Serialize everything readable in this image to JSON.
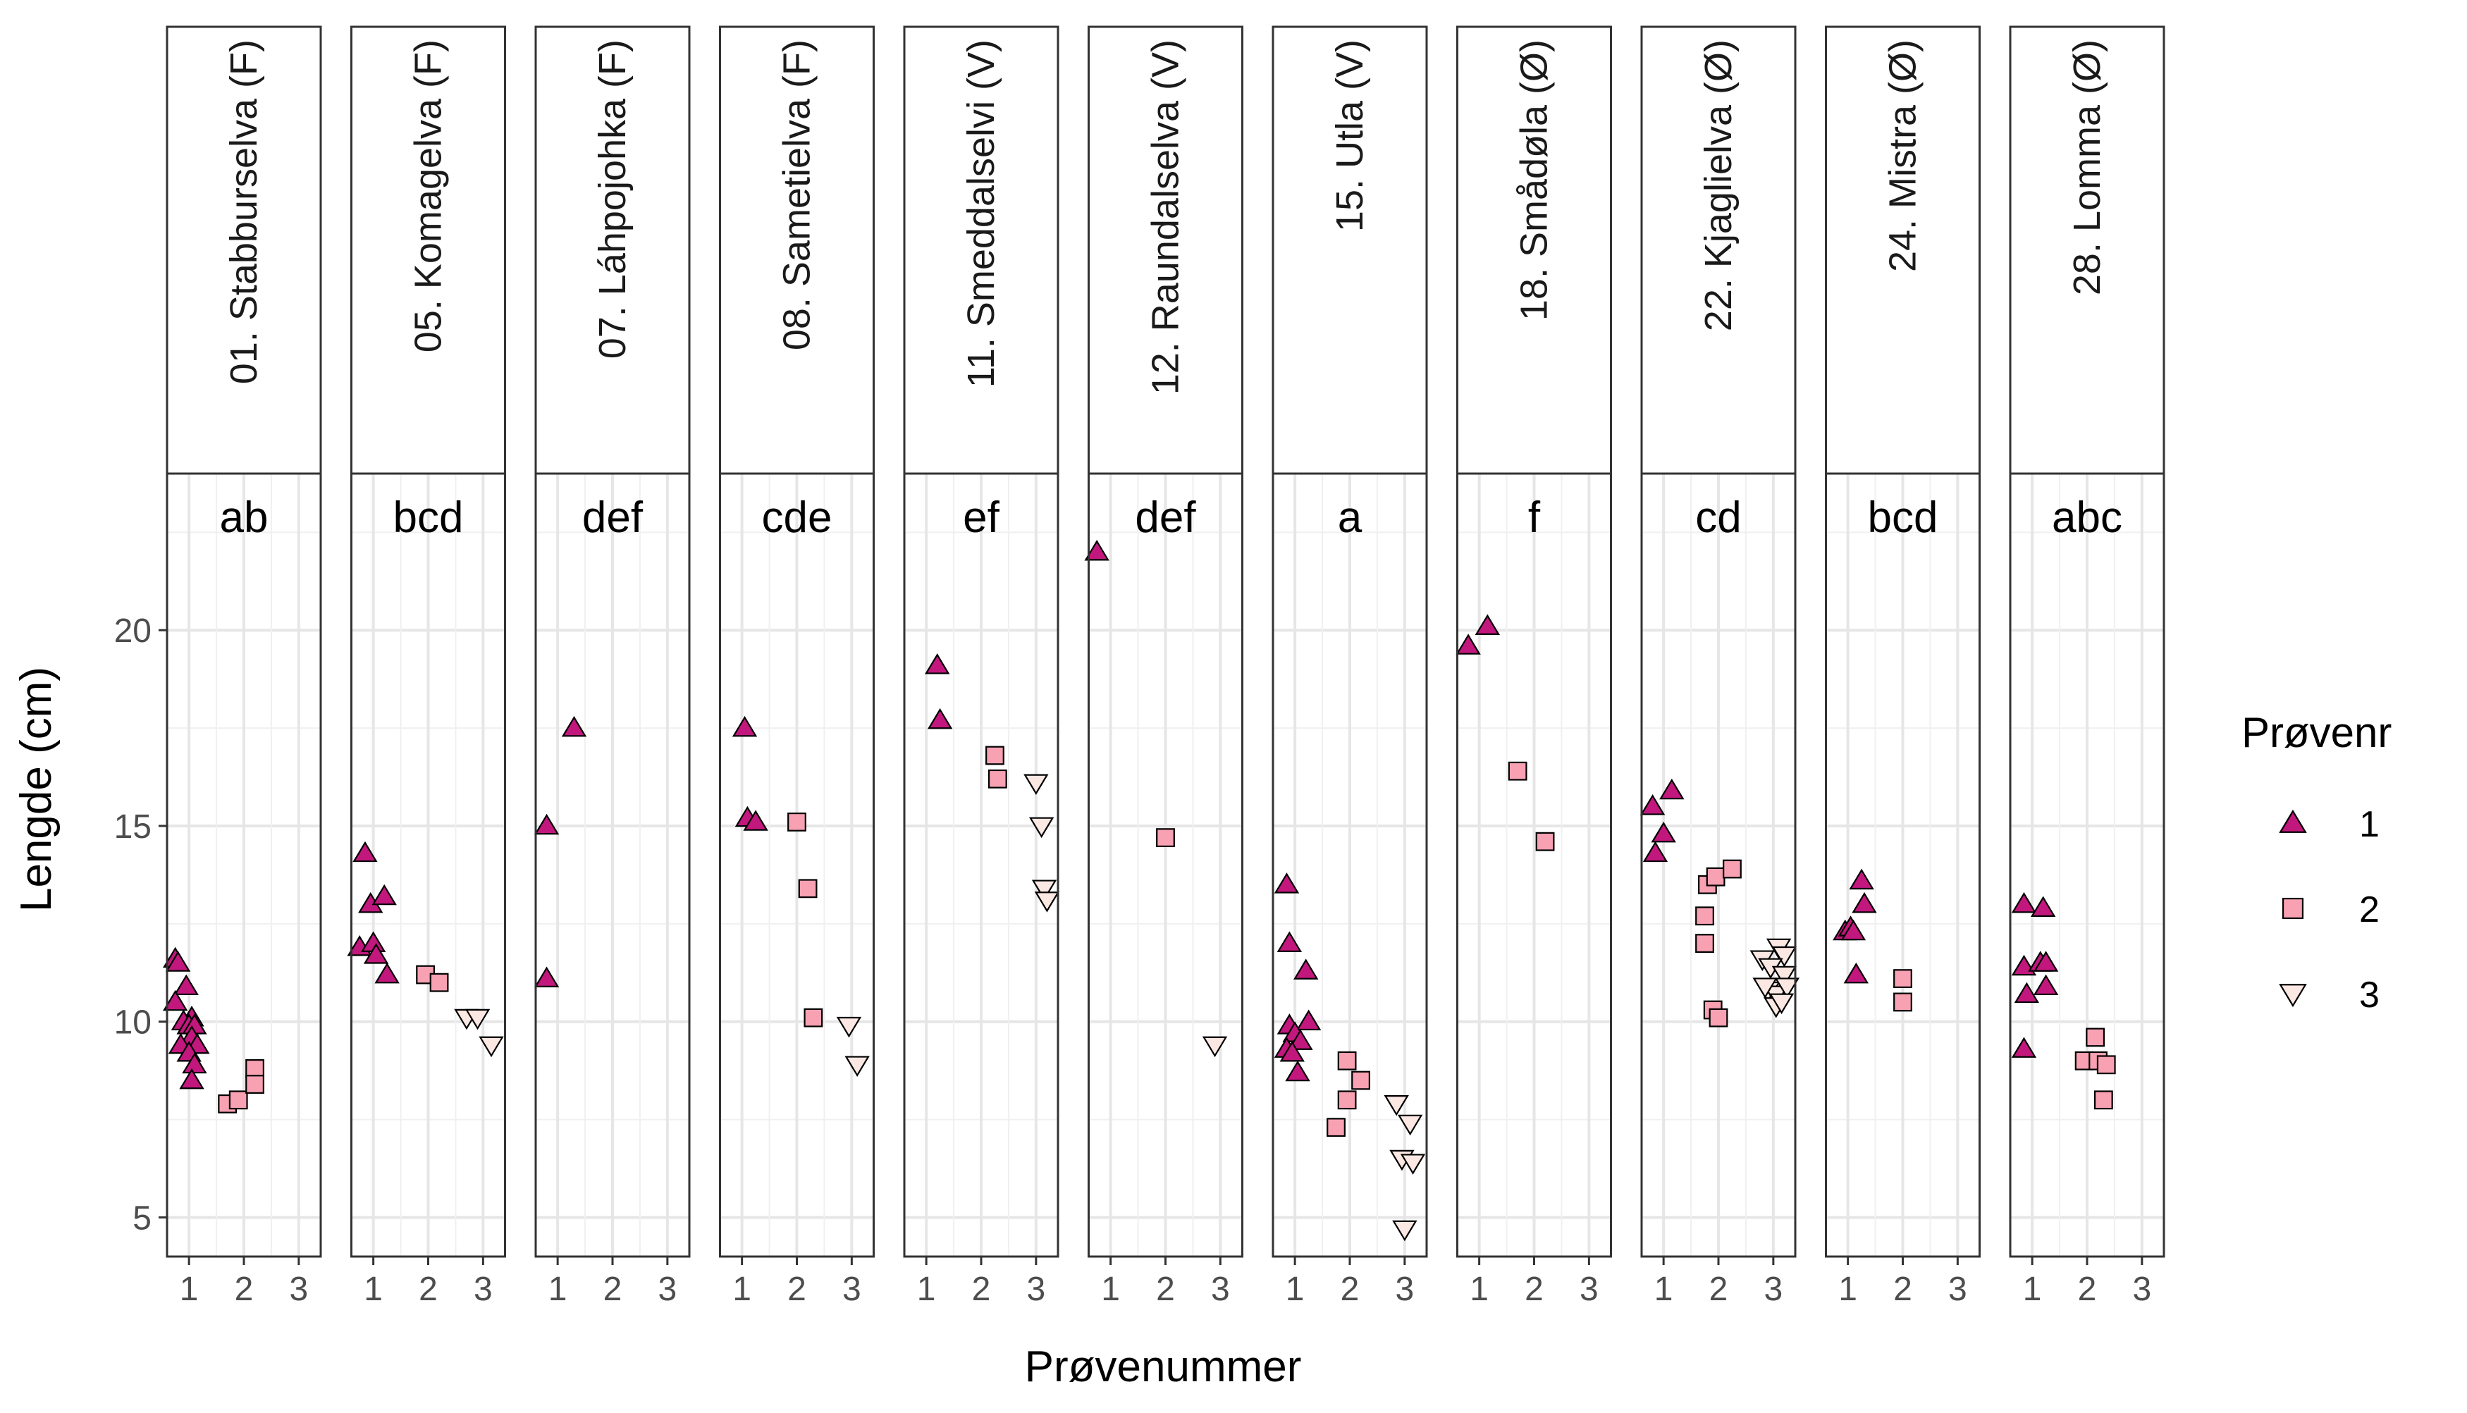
{
  "chart_data": {
    "type": "scatter",
    "title": "",
    "xlabel": "Prøvenummer",
    "ylabel": "Lengde (cm)",
    "xticks": [
      1,
      2,
      3
    ],
    "xlim": [
      0.6,
      3.4
    ],
    "yticks": [
      5,
      10,
      15,
      20
    ],
    "ylim": [
      4,
      24
    ],
    "grid": true,
    "legend": {
      "title": "Prøvenr",
      "position": "right",
      "entries": [
        {
          "label": "1",
          "shape": "triangle-up",
          "color": "#C2187E"
        },
        {
          "label": "2",
          "shape": "square",
          "color": "#F7A1B2"
        },
        {
          "label": "3",
          "shape": "triangle-down",
          "color": "#FCE8E3"
        }
      ]
    },
    "facets": [
      {
        "name": "01. Stabburselva (F)",
        "group": "ab",
        "series": [
          {
            "name": "1",
            "x": [
              0.75,
              0.8,
              0.95,
              1.05,
              0.75,
              0.9,
              1.0,
              1.1,
              1.05,
              1.15,
              0.85,
              1.0,
              1.1,
              1.05
            ],
            "y": [
              11.6,
              11.5,
              10.9,
              10.1,
              10.5,
              10.0,
              9.9,
              9.9,
              9.6,
              9.4,
              9.4,
              9.2,
              8.9,
              8.5
            ]
          },
          {
            "name": "2",
            "x": [
              1.7,
              1.9,
              2.2,
              2.2
            ],
            "y": [
              7.9,
              8.0,
              8.8,
              8.4
            ]
          },
          {
            "name": "3",
            "x": [],
            "y": []
          }
        ]
      },
      {
        "name": "05. Komagelva (F)",
        "group": "bcd",
        "series": [
          {
            "name": "1",
            "x": [
              0.85,
              0.95,
              1.2,
              0.75,
              1.0,
              1.05,
              1.25
            ],
            "y": [
              14.3,
              13.0,
              13.2,
              11.9,
              12.0,
              11.7,
              11.2
            ]
          },
          {
            "name": "2",
            "x": [
              1.95,
              2.2
            ],
            "y": [
              11.2,
              11.0
            ]
          },
          {
            "name": "3",
            "x": [
              2.7,
              2.9,
              3.15
            ],
            "y": [
              10.1,
              10.1,
              9.4
            ]
          }
        ]
      },
      {
        "name": "07. Láhpojohka (F)",
        "group": "def",
        "series": [
          {
            "name": "1",
            "x": [
              0.8,
              0.8,
              1.3
            ],
            "y": [
              15.0,
              11.1,
              17.5
            ]
          },
          {
            "name": "2",
            "x": [],
            "y": []
          },
          {
            "name": "3",
            "x": [],
            "y": []
          }
        ]
      },
      {
        "name": "08. Sametielva (F)",
        "group": "cde",
        "series": [
          {
            "name": "1",
            "x": [
              1.05,
              1.1,
              1.25
            ],
            "y": [
              17.5,
              15.2,
              15.1
            ]
          },
          {
            "name": "2",
            "x": [
              2.0,
              2.2,
              2.3
            ],
            "y": [
              15.1,
              13.4,
              10.1
            ]
          },
          {
            "name": "3",
            "x": [
              2.95,
              3.1
            ],
            "y": [
              9.9,
              8.9
            ]
          }
        ]
      },
      {
        "name": "11. Smeddalselvi (V)",
        "group": "ef",
        "series": [
          {
            "name": "1",
            "x": [
              1.2,
              1.25
            ],
            "y": [
              19.1,
              17.7
            ]
          },
          {
            "name": "2",
            "x": [
              2.25,
              2.3
            ],
            "y": [
              16.8,
              16.2
            ]
          },
          {
            "name": "3",
            "x": [
              3.0,
              3.1,
              3.15,
              3.2
            ],
            "y": [
              16.1,
              15.0,
              13.4,
              13.1
            ]
          }
        ]
      },
      {
        "name": "12. Raundalselva (V)",
        "group": "def",
        "series": [
          {
            "name": "1",
            "x": [
              0.75
            ],
            "y": [
              22.0
            ]
          },
          {
            "name": "2",
            "x": [
              2.0
            ],
            "y": [
              14.7
            ]
          },
          {
            "name": "3",
            "x": [
              2.9
            ],
            "y": [
              9.4
            ]
          }
        ]
      },
      {
        "name": "15. Utla (V)",
        "group": "a",
        "series": [
          {
            "name": "1",
            "x": [
              0.85,
              0.9,
              1.2,
              0.9,
              1.25,
              1.0,
              1.1,
              0.85,
              0.95,
              1.05
            ],
            "y": [
              13.5,
              12.0,
              11.3,
              9.9,
              10.0,
              9.7,
              9.5,
              9.3,
              9.2,
              8.7
            ]
          },
          {
            "name": "2",
            "x": [
              1.95,
              2.2,
              1.95,
              1.75
            ],
            "y": [
              9.0,
              8.5,
              8.0,
              7.3
            ]
          },
          {
            "name": "3",
            "x": [
              2.85,
              3.1,
              2.95,
              3.15,
              3.0
            ],
            "y": [
              7.9,
              7.4,
              6.5,
              6.4,
              4.7
            ]
          }
        ]
      },
      {
        "name": "18. Smådøla (Ø)",
        "group": "f",
        "series": [
          {
            "name": "1",
            "x": [
              0.8,
              1.15
            ],
            "y": [
              19.6,
              20.1
            ]
          },
          {
            "name": "2",
            "x": [
              1.7,
              2.2
            ],
            "y": [
              16.4,
              14.6
            ]
          },
          {
            "name": "3",
            "x": [],
            "y": []
          }
        ]
      },
      {
        "name": "22. Kjaglielva (Ø)",
        "group": "cd",
        "series": [
          {
            "name": "1",
            "x": [
              0.8,
              1.0,
              1.15,
              0.85
            ],
            "y": [
              15.5,
              14.8,
              15.9,
              14.3
            ]
          },
          {
            "name": "2",
            "x": [
              1.8,
              1.95,
              2.25,
              1.75,
              1.75,
              1.9,
              2.0
            ],
            "y": [
              13.5,
              13.7,
              13.9,
              12.7,
              12.0,
              10.3,
              10.1
            ]
          },
          {
            "name": "3",
            "x": [
              2.8,
              3.1,
              3.2,
              2.95,
              3.2,
              2.9,
              3.05,
              3.25,
              3.05,
              3.15,
              2.85
            ],
            "y": [
              11.6,
              11.9,
              11.7,
              11.4,
              11.2,
              10.8,
              10.7,
              10.9,
              10.4,
              10.5,
              10.9
            ]
          }
        ]
      },
      {
        "name": "24. Mistra (Ø)",
        "group": "bcd",
        "series": [
          {
            "name": "1",
            "x": [
              1.25,
              1.3,
              0.95,
              1.05,
              1.1,
              1.15
            ],
            "y": [
              13.6,
              13.0,
              12.3,
              12.4,
              12.3,
              11.2
            ]
          },
          {
            "name": "2",
            "x": [
              2.0,
              2.0
            ],
            "y": [
              11.1,
              10.5
            ]
          },
          {
            "name": "3",
            "x": [],
            "y": []
          }
        ]
      },
      {
        "name": "28. Lomma (Ø)",
        "group": "abc",
        "series": [
          {
            "name": "1",
            "x": [
              0.85,
              1.2,
              0.85,
              1.15,
              1.25,
              0.9,
              1.25,
              0.85
            ],
            "y": [
              13.0,
              12.9,
              11.4,
              11.5,
              11.5,
              10.7,
              10.9,
              9.3
            ]
          },
          {
            "name": "2",
            "x": [
              2.15,
              1.95,
              2.2,
              2.35,
              2.3
            ],
            "y": [
              9.6,
              9.0,
              9.0,
              8.9,
              8.0
            ]
          },
          {
            "name": "3",
            "x": [],
            "y": []
          }
        ]
      }
    ]
  }
}
